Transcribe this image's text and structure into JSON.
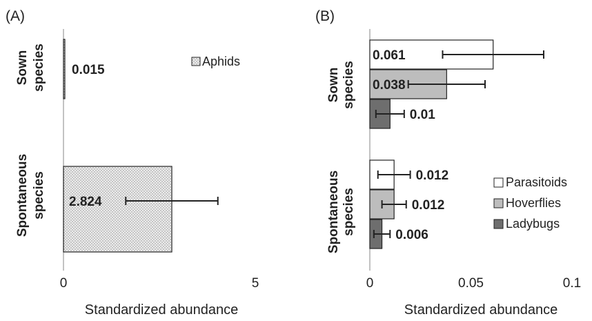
{
  "chart_data": [
    {
      "panel": "(A)",
      "type": "bar",
      "orientation": "horizontal",
      "categories": [
        "Sown species",
        "Spontaneous species"
      ],
      "series": [
        {
          "name": "Aphids",
          "values": [
            0.015,
            2.824
          ],
          "errors": [
            0,
            1.2
          ],
          "color": "#e0e0e0",
          "pattern": "dots"
        }
      ],
      "data_labels": [
        "0.015",
        "2.824"
      ],
      "xlabel": "Standardized abundance",
      "xlim": [
        0,
        5
      ],
      "xticks": [
        "0",
        "5"
      ],
      "legend_position": "top-right"
    },
    {
      "panel": "(B)",
      "type": "bar",
      "orientation": "horizontal",
      "categories": [
        "Sown species",
        "Spontaneous species"
      ],
      "series": [
        {
          "name": "Parasitoids",
          "values": [
            0.061,
            0.012
          ],
          "errors": [
            0.025,
            0.008
          ],
          "color": "#ffffff"
        },
        {
          "name": "Hoverflies",
          "values": [
            0.038,
            0.012
          ],
          "errors": [
            0.019,
            0.006
          ],
          "color": "#bdbdbd"
        },
        {
          "name": "Ladybugs",
          "values": [
            0.01,
            0.006
          ],
          "errors": [
            0.007,
            0.004
          ],
          "color": "#6e6e6e"
        }
      ],
      "data_labels": [
        [
          "0.061",
          "0.012"
        ],
        [
          "0.038",
          "0.012"
        ],
        [
          "0.01",
          "0.006"
        ]
      ],
      "xlabel": "Standardized abundance",
      "xlim": [
        0,
        0.1
      ],
      "xticks": [
        "0",
        "0.05",
        "0.1"
      ],
      "legend_position": "bottom-right"
    }
  ]
}
